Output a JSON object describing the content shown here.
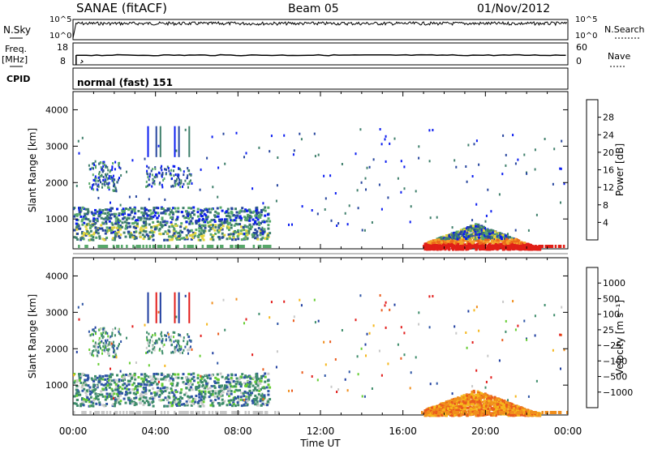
{
  "header": {
    "station": "SANAE (fitACF)",
    "beam": "Beam 05",
    "date": "01/Nov/2012"
  },
  "left_labels": {
    "nsky": "N.Sky",
    "freq_line1": "Freq.",
    "freq_line2": "[MHz]",
    "cpid": "CPID"
  },
  "right_labels": {
    "nsearch": "N.Search",
    "nave": "Nave"
  },
  "cpid_text": "normal (fast) 151",
  "noise_panel": {
    "left_ticks": [
      "10^5",
      "10^0"
    ],
    "right_ticks": [
      "10^5",
      "10^0"
    ]
  },
  "freq_panel": {
    "left_ticks": [
      "18",
      "8"
    ],
    "right_ticks": [
      "60",
      "0"
    ]
  },
  "colors": {
    "power_scale": [
      "#0a1cf0",
      "#27469e",
      "#3f7f6b",
      "#57a86a",
      "#e2d43a",
      "#f2a52a",
      "#ec6a1a",
      "#e01f17"
    ],
    "velocity_scale": [
      "#e21c1a",
      "#ea5b1c",
      "#f08e1c",
      "#f5b71c",
      "#c8c8c8",
      "#66cd33",
      "#3d8c6a",
      "#2e55a5",
      "#1d3c9f"
    ]
  },
  "chart_data": [
    {
      "type": "heatmap",
      "name": "power",
      "xlabel": "",
      "ylabel": "Slant Range [km]",
      "yticks": [
        "1000",
        "2000",
        "3000",
        "4000"
      ],
      "ylim": [
        180,
        4500
      ],
      "xlim": [
        "00:00",
        "24:00"
      ],
      "colorbar_label": "Power [dB]",
      "colorbar_ticks": [
        "4",
        "8",
        "12",
        "16",
        "20",
        "24",
        "28"
      ],
      "colorbar_range": [
        0,
        32
      ],
      "features": [
        {
          "hours": [
            0.0,
            9.5
          ],
          "range_km": [
            400,
            1400
          ],
          "note": "continuous backscatter band"
        },
        {
          "hours": [
            0.7,
            2.3
          ],
          "range_km": [
            1800,
            2600
          ]
        },
        {
          "hours": [
            3.5,
            5.7
          ],
          "range_km": [
            1900,
            3600
          ]
        },
        {
          "hours": [
            17.0,
            22.6
          ],
          "range_km": [
            180,
            1100
          ],
          "note": "strong echoes up to 28 dB"
        }
      ]
    },
    {
      "type": "heatmap",
      "name": "velocity",
      "xlabel": "Time UT",
      "ylabel": "Slant Range [km]",
      "xticks": [
        "00:00",
        "04:00",
        "08:00",
        "12:00",
        "16:00",
        "20:00",
        "00:00"
      ],
      "yticks": [
        "1000",
        "2000",
        "3000",
        "4000"
      ],
      "ylim": [
        180,
        4500
      ],
      "colorbar_label": "Velocity [m s⁻¹]",
      "colorbar_ticks": [
        "1000",
        "500",
        "100",
        "25",
        "−25",
        "−100",
        "−500",
        "−1000"
      ],
      "colorbar_range": [
        -1000,
        1000
      ]
    }
  ]
}
